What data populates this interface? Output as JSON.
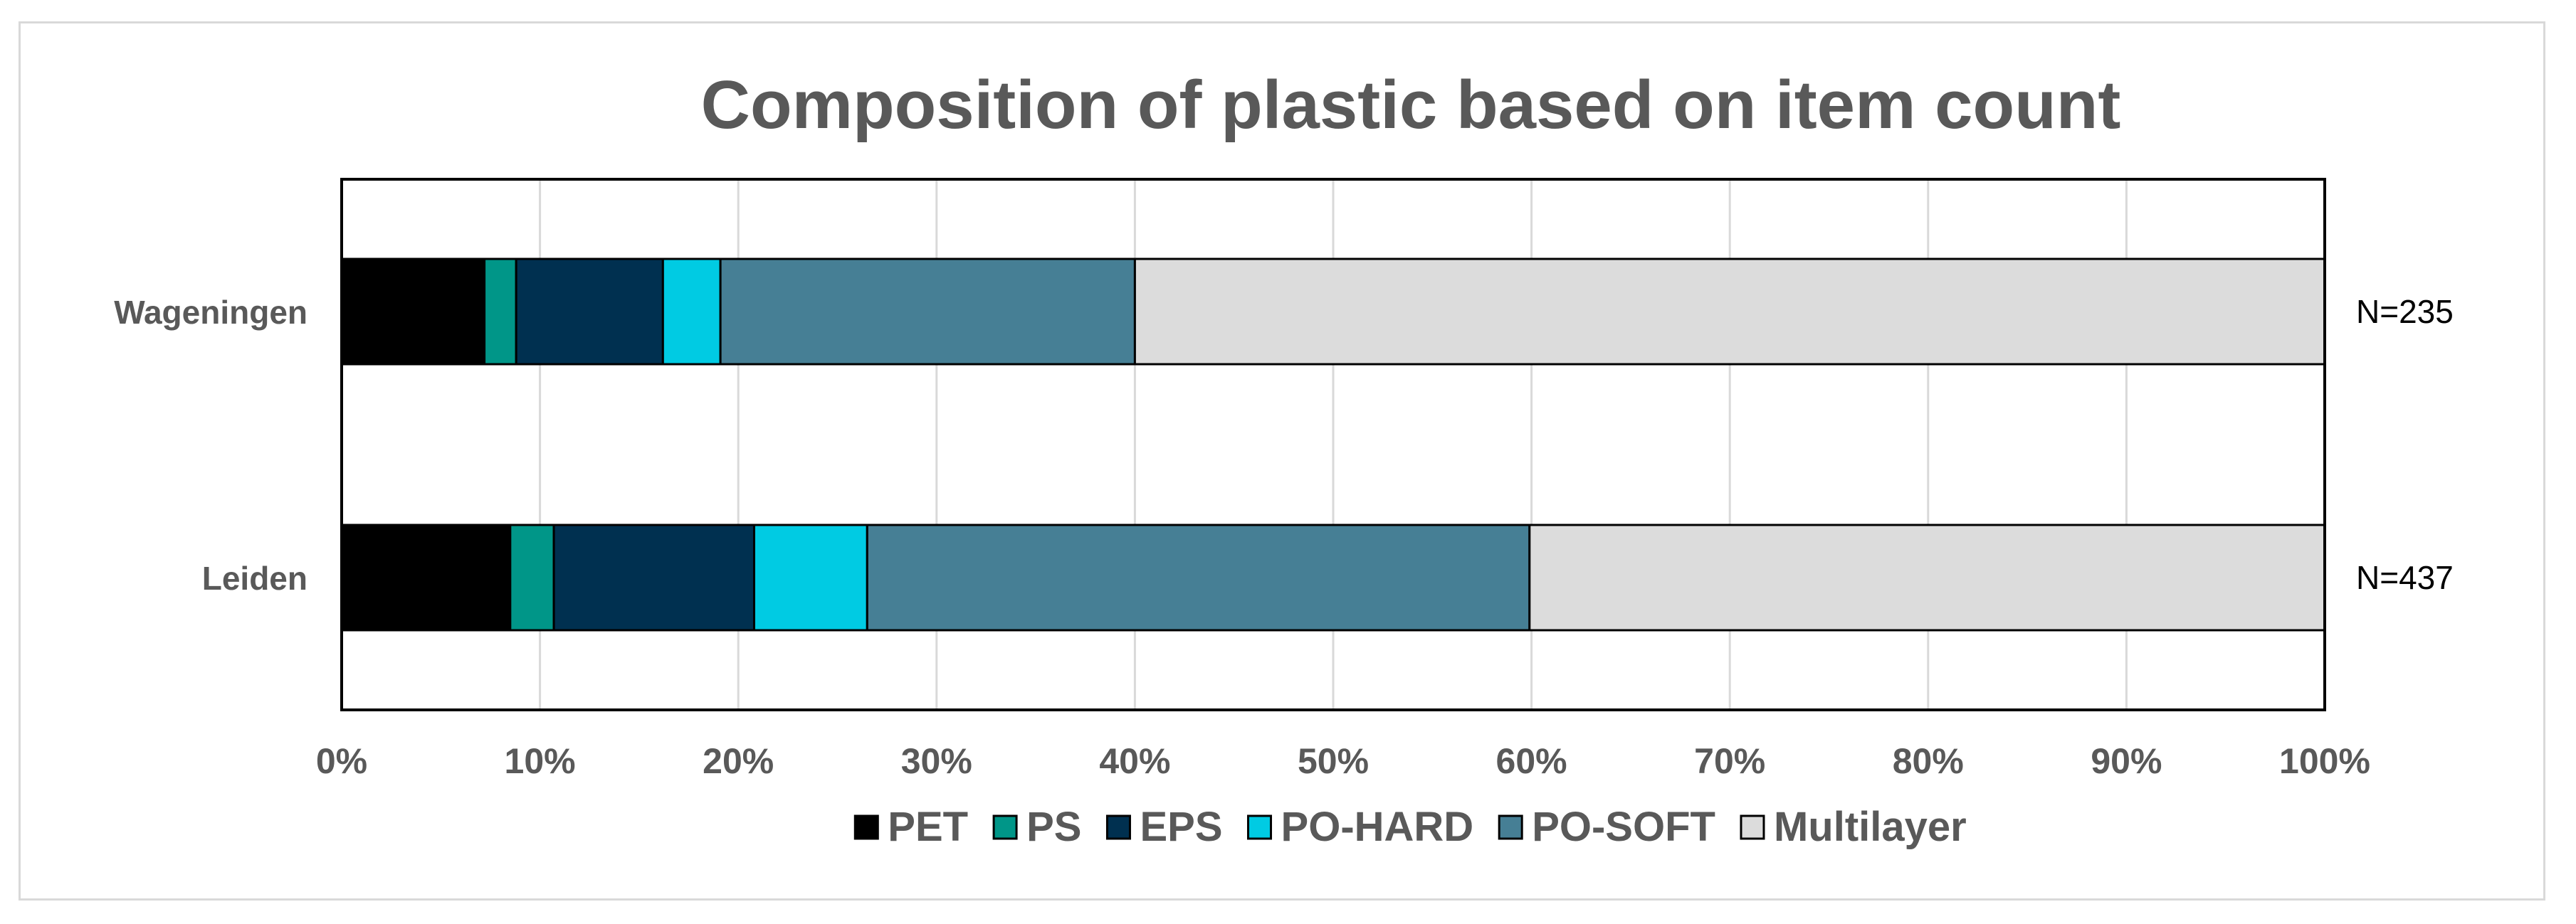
{
  "chart_data": {
    "type": "bar",
    "orientation": "horizontal",
    "stacked": "percent",
    "title": "Composition of plastic based on item count",
    "categories": [
      "Wageningen",
      "Leiden"
    ],
    "series": [
      {
        "name": "PET",
        "color": "#000000",
        "values": [
          7.2,
          8.5
        ]
      },
      {
        "name": "PS",
        "color": "#009688",
        "values": [
          1.6,
          2.2
        ]
      },
      {
        "name": "EPS",
        "color": "#003050",
        "values": [
          7.4,
          10.1
        ]
      },
      {
        "name": "PO-HARD",
        "color": "#00CBE3",
        "values": [
          2.9,
          5.7
        ]
      },
      {
        "name": "PO-SOFT",
        "color": "#467F95",
        "values": [
          20.9,
          33.4
        ]
      },
      {
        "name": "Multilayer",
        "color": "#DCDCDC",
        "values": [
          60.0,
          40.1
        ]
      }
    ],
    "annotations": [
      "N=235",
      "N=437"
    ],
    "xlim": [
      0,
      100
    ],
    "xticks": [
      "0%",
      "10%",
      "20%",
      "30%",
      "40%",
      "50%",
      "60%",
      "70%",
      "80%",
      "90%",
      "100%"
    ],
    "xlabel": "",
    "ylabel": "",
    "grid": "vertical",
    "legend": "bottom"
  }
}
